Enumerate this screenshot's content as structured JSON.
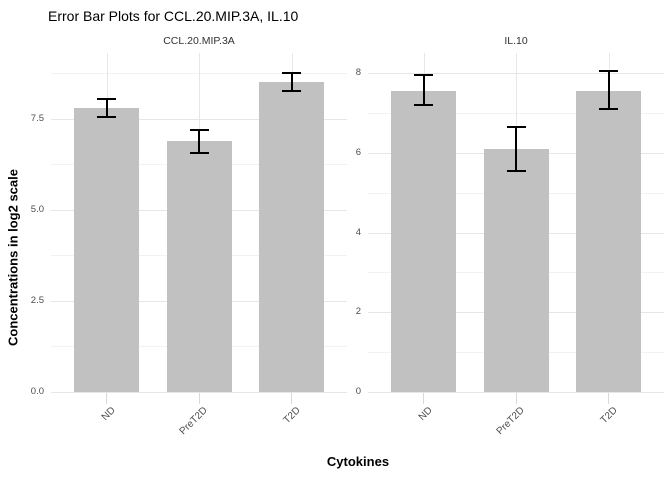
{
  "chart_data": {
    "type": "bar",
    "title": "Error Bar Plots for CCL.20.MIP.3A, IL.10",
    "xlabel": "Cytokines",
    "ylabel": "Concentrations in log2 scale",
    "categories": [
      "ND",
      "PreT2D",
      "T2D"
    ],
    "legend": false,
    "grid": true,
    "facets": [
      {
        "label": "CCL.20.MIP.3A",
        "values": [
          7.8,
          6.9,
          8.5
        ],
        "error_low": [
          7.55,
          6.55,
          8.25
        ],
        "error_high": [
          8.05,
          7.2,
          8.75
        ],
        "ylim": [
          0,
          9.3
        ],
        "yticks": [
          0.0,
          2.5,
          5.0,
          7.5
        ],
        "ytick_labels": [
          "0.0",
          "2.5",
          "5.0",
          "7.5"
        ],
        "minor_ticks": [
          1.25,
          3.75,
          6.25,
          8.75
        ]
      },
      {
        "label": "IL.10",
        "values": [
          7.55,
          6.1,
          7.55
        ],
        "error_low": [
          7.2,
          5.55,
          7.1
        ],
        "error_high": [
          7.95,
          6.65,
          8.05
        ],
        "ylim": [
          0,
          8.5
        ],
        "yticks": [
          0,
          2,
          4,
          6,
          8
        ],
        "ytick_labels": [
          "0",
          "2",
          "4",
          "6",
          "8"
        ],
        "minor_ticks": [
          1,
          3,
          5,
          7
        ]
      }
    ],
    "colors": {
      "bar_fill": "#c1c1c1",
      "error_bar": "#000000",
      "grid_major": "#e6e6e6",
      "grid_minor": "#f2f2f2",
      "axis_text": "#4d4d4d",
      "strip_text": "#333333",
      "tick_mark": "#d9d9d9"
    }
  }
}
